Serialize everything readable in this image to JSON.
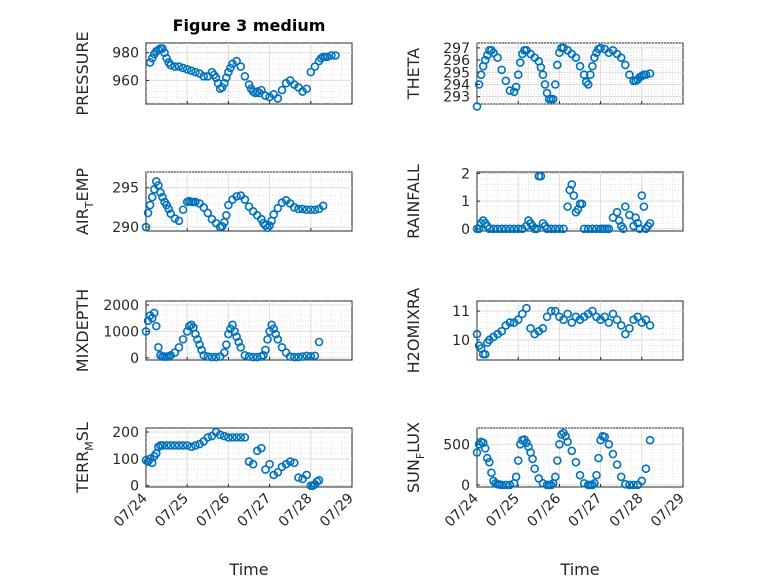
{
  "chart_data": [
    {
      "type": "scatter",
      "title": "Figure 3 medium",
      "ylabel": "PRESSURE",
      "ylabel_sub": "",
      "ylabel_tail": "",
      "xlim": [
        0,
        5
      ],
      "ylim": [
        943,
        987
      ],
      "yticks": [
        960,
        980
      ],
      "xticklabels": [],
      "xlabel": "",
      "grid": true,
      "x": [
        0.1,
        0.15,
        0.2,
        0.25,
        0.3,
        0.35,
        0.4,
        0.45,
        0.5,
        0.55,
        0.6,
        0.7,
        0.8,
        0.9,
        1.0,
        1.1,
        1.2,
        1.3,
        1.4,
        1.5,
        1.6,
        1.65,
        1.7,
        1.75,
        1.8,
        1.85,
        1.9,
        1.95,
        2.0,
        2.05,
        2.1,
        2.2,
        2.3,
        2.4,
        2.5,
        2.55,
        2.6,
        2.65,
        2.7,
        2.75,
        2.8,
        2.9,
        3.0,
        3.1,
        3.2,
        3.3,
        3.4,
        3.5,
        3.6,
        3.7,
        3.8,
        3.9,
        4.0,
        4.1,
        4.2,
        4.25,
        4.3,
        4.35,
        4.4,
        4.5,
        4.6
      ],
      "y": [
        973,
        976,
        979,
        981,
        982,
        983,
        983,
        980,
        976,
        973,
        971,
        970,
        970,
        969,
        968,
        967,
        966,
        965,
        963,
        963,
        966,
        964,
        962,
        958,
        954,
        955,
        958,
        962,
        966,
        969,
        972,
        974,
        970,
        963,
        957,
        954,
        952,
        951,
        952,
        951,
        953,
        949,
        948,
        950,
        947,
        953,
        958,
        960,
        957,
        955,
        952,
        954,
        966,
        970,
        974,
        976,
        977,
        977,
        977,
        978,
        978
      ]
    },
    {
      "type": "scatter",
      "title": "",
      "ylabel": "THETA",
      "ylabel_sub": "",
      "ylabel_tail": "",
      "xlim": [
        0,
        5
      ],
      "ylim": [
        292.4,
        297.4
      ],
      "yticks": [
        293,
        294,
        295,
        296,
        297
      ],
      "xticklabels": [],
      "xlabel": "",
      "grid": true,
      "x": [
        0.0,
        0.05,
        0.1,
        0.15,
        0.2,
        0.25,
        0.3,
        0.35,
        0.4,
        0.5,
        0.6,
        0.7,
        0.8,
        0.9,
        0.95,
        1.0,
        1.05,
        1.1,
        1.15,
        1.2,
        1.3,
        1.4,
        1.5,
        1.55,
        1.6,
        1.65,
        1.7,
        1.75,
        1.8,
        1.85,
        1.9,
        1.95,
        2.0,
        2.05,
        2.1,
        2.2,
        2.3,
        2.4,
        2.5,
        2.6,
        2.65,
        2.7,
        2.75,
        2.8,
        2.85,
        2.9,
        2.95,
        3.0,
        3.1,
        3.2,
        3.3,
        3.4,
        3.5,
        3.6,
        3.7,
        3.8,
        3.85,
        3.9,
        3.95,
        4.0,
        4.05,
        4.1,
        4.2
      ],
      "y": [
        292.2,
        294.0,
        294.8,
        295.5,
        296.0,
        296.4,
        296.8,
        296.8,
        296.6,
        296.2,
        295.2,
        294.3,
        293.5,
        293.4,
        293.8,
        294.8,
        295.8,
        296.5,
        296.8,
        296.8,
        296.5,
        296.2,
        295.9,
        295.4,
        294.8,
        294.0,
        293.3,
        292.8,
        292.8,
        292.8,
        294.0,
        295.6,
        296.6,
        297.0,
        297.0,
        296.8,
        296.5,
        296.2,
        295.5,
        294.8,
        294.2,
        294.0,
        294.8,
        295.5,
        296.2,
        296.6,
        296.9,
        297.0,
        296.9,
        296.6,
        296.8,
        296.5,
        296.2,
        295.6,
        294.8,
        294.3,
        294.3,
        294.4,
        294.6,
        294.7,
        294.8,
        294.8,
        294.9
      ]
    },
    {
      "type": "scatter",
      "title": "",
      "ylabel": "AIR",
      "ylabel_sub": "T",
      "ylabel_tail": "EMP",
      "xlim": [
        0,
        5
      ],
      "ylim": [
        289.5,
        297
      ],
      "yticks": [
        290,
        295
      ],
      "xticklabels": [],
      "xlabel": "",
      "grid": true,
      "x": [
        0.0,
        0.05,
        0.1,
        0.15,
        0.2,
        0.25,
        0.3,
        0.35,
        0.4,
        0.45,
        0.5,
        0.55,
        0.6,
        0.7,
        0.8,
        0.9,
        1.0,
        1.05,
        1.1,
        1.15,
        1.2,
        1.3,
        1.4,
        1.5,
        1.6,
        1.7,
        1.8,
        1.85,
        1.9,
        1.95,
        2.0,
        2.1,
        2.2,
        2.3,
        2.4,
        2.5,
        2.6,
        2.7,
        2.8,
        2.85,
        2.9,
        2.95,
        3.0,
        3.05,
        3.1,
        3.2,
        3.3,
        3.4,
        3.5,
        3.6,
        3.7,
        3.8,
        3.9,
        4.0,
        4.1,
        4.2,
        4.3
      ],
      "y": [
        290.0,
        291.8,
        292.8,
        293.8,
        294.8,
        295.8,
        295.3,
        294.4,
        293.8,
        293.2,
        292.8,
        292.3,
        291.7,
        291.1,
        290.8,
        292.2,
        293.2,
        293.3,
        293.2,
        293.2,
        293.2,
        293.0,
        292.5,
        291.8,
        291.0,
        290.5,
        290.0,
        290.1,
        290.6,
        291.5,
        292.8,
        293.5,
        293.9,
        294.0,
        293.5,
        292.6,
        292.0,
        291.5,
        291.0,
        290.5,
        290.2,
        289.9,
        290.2,
        290.8,
        291.6,
        292.4,
        293.1,
        293.4,
        293.0,
        292.5,
        292.3,
        292.3,
        292.2,
        292.2,
        292.2,
        292.3,
        292.7
      ]
    },
    {
      "type": "scatter",
      "title": "",
      "ylabel": "RAINFALL",
      "ylabel_sub": "",
      "ylabel_tail": "",
      "xlim": [
        0,
        5
      ],
      "ylim": [
        -0.08,
        2.05
      ],
      "yticks": [
        0,
        1,
        2
      ],
      "xticklabels": [],
      "xlabel": "",
      "grid": true,
      "x": [
        0.0,
        0.05,
        0.1,
        0.15,
        0.2,
        0.25,
        0.3,
        0.4,
        0.5,
        0.6,
        0.7,
        0.8,
        0.9,
        1.0,
        1.1,
        1.2,
        1.25,
        1.3,
        1.35,
        1.4,
        1.45,
        1.5,
        1.55,
        1.6,
        1.65,
        1.7,
        1.8,
        1.9,
        2.0,
        2.1,
        2.2,
        2.25,
        2.3,
        2.35,
        2.4,
        2.45,
        2.5,
        2.55,
        2.6,
        2.7,
        2.8,
        2.9,
        3.0,
        3.05,
        3.1,
        3.15,
        3.2,
        3.3,
        3.4,
        3.45,
        3.5,
        3.55,
        3.6,
        3.7,
        3.8,
        3.85,
        3.9,
        3.95,
        4.0,
        4.05,
        4.1,
        4.15,
        4.2
      ],
      "y": [
        0.0,
        0.0,
        0.2,
        0.3,
        0.2,
        0.1,
        0.0,
        0.0,
        0.0,
        0.0,
        0.0,
        0.0,
        0.0,
        0.0,
        0.0,
        0.1,
        0.3,
        0.2,
        0.1,
        0.0,
        0.0,
        1.9,
        1.9,
        0.2,
        0.1,
        0.0,
        0.0,
        0.0,
        0.0,
        0.0,
        0.8,
        1.4,
        1.6,
        1.2,
        0.6,
        0.7,
        0.9,
        0.9,
        0.0,
        0.0,
        0.0,
        0.0,
        0.0,
        0.0,
        0.0,
        0.0,
        0.0,
        0.4,
        0.6,
        0.3,
        0.1,
        0.0,
        0.8,
        0.5,
        0.1,
        0.4,
        0.2,
        0.0,
        1.2,
        0.8,
        0.0,
        0.1,
        0.2
      ]
    },
    {
      "type": "scatter",
      "title": "",
      "ylabel": "MIXDEPTH",
      "ylabel_sub": "",
      "ylabel_tail": "",
      "xlim": [
        0,
        5
      ],
      "ylim": [
        -80,
        2150
      ],
      "yticks": [
        0,
        1000,
        2000
      ],
      "xticklabels": [],
      "xlabel": "",
      "grid": true,
      "x": [
        0.0,
        0.05,
        0.1,
        0.15,
        0.2,
        0.25,
        0.3,
        0.35,
        0.4,
        0.45,
        0.5,
        0.55,
        0.6,
        0.7,
        0.8,
        0.9,
        1.0,
        1.05,
        1.1,
        1.15,
        1.2,
        1.25,
        1.3,
        1.35,
        1.4,
        1.5,
        1.6,
        1.7,
        1.8,
        1.9,
        1.95,
        2.0,
        2.05,
        2.1,
        2.15,
        2.2,
        2.25,
        2.3,
        2.4,
        2.5,
        2.6,
        2.7,
        2.8,
        2.85,
        2.9,
        2.95,
        3.0,
        3.05,
        3.1,
        3.15,
        3.2,
        3.3,
        3.4,
        3.5,
        3.6,
        3.7,
        3.8,
        3.9,
        4.0,
        4.1,
        4.2
      ],
      "y": [
        1000,
        1400,
        1600,
        1500,
        1700,
        1200,
        400,
        100,
        50,
        50,
        50,
        50,
        100,
        200,
        400,
        700,
        1000,
        1200,
        1250,
        1150,
        900,
        700,
        500,
        300,
        100,
        50,
        30,
        30,
        50,
        200,
        500,
        900,
        1100,
        1250,
        1000,
        800,
        600,
        400,
        100,
        50,
        30,
        30,
        50,
        100,
        300,
        700,
        1000,
        1250,
        1100,
        900,
        700,
        400,
        200,
        50,
        30,
        30,
        50,
        80,
        60,
        80,
        600
      ]
    },
    {
      "type": "scatter",
      "title": "",
      "ylabel": "H2OMIXRA",
      "ylabel_sub": "",
      "ylabel_tail": "",
      "xlim": [
        0,
        5
      ],
      "ylim": [
        9.3,
        11.35
      ],
      "yticks": [
        10,
        11
      ],
      "xticklabels": [],
      "xlabel": "",
      "grid": true,
      "x": [
        0.0,
        0.05,
        0.1,
        0.15,
        0.2,
        0.25,
        0.3,
        0.4,
        0.5,
        0.6,
        0.7,
        0.8,
        0.9,
        1.0,
        1.1,
        1.2,
        1.3,
        1.4,
        1.5,
        1.6,
        1.7,
        1.8,
        1.9,
        2.0,
        2.1,
        2.2,
        2.3,
        2.4,
        2.5,
        2.6,
        2.7,
        2.8,
        2.9,
        3.0,
        3.1,
        3.2,
        3.3,
        3.4,
        3.5,
        3.6,
        3.7,
        3.8,
        3.9,
        4.0,
        4.1,
        4.2
      ],
      "y": [
        10.2,
        9.8,
        9.7,
        9.5,
        9.5,
        9.9,
        10.0,
        10.1,
        10.2,
        10.3,
        10.5,
        10.6,
        10.6,
        10.7,
        10.9,
        11.1,
        10.4,
        10.2,
        10.3,
        10.4,
        10.8,
        11.0,
        11.0,
        10.8,
        10.7,
        10.9,
        10.6,
        10.8,
        10.7,
        10.8,
        10.9,
        11.0,
        10.8,
        10.7,
        10.8,
        10.6,
        10.9,
        10.7,
        10.5,
        10.2,
        10.4,
        10.7,
        10.8,
        10.6,
        10.7,
        10.5
      ]
    },
    {
      "type": "scatter",
      "title": "",
      "ylabel": "TERR",
      "ylabel_sub": "M",
      "ylabel_tail": "SL",
      "xlim": [
        0,
        5
      ],
      "ylim": [
        -5,
        215
      ],
      "yticks": [
        0,
        100,
        200
      ],
      "xticklabels": [
        "07/24",
        "07/25",
        "07/26",
        "07/27",
        "07/28",
        "07/29"
      ],
      "xlabel": "Time",
      "grid": true,
      "x": [
        0.0,
        0.05,
        0.1,
        0.15,
        0.2,
        0.25,
        0.3,
        0.35,
        0.4,
        0.5,
        0.6,
        0.7,
        0.8,
        0.9,
        1.0,
        1.1,
        1.2,
        1.3,
        1.4,
        1.5,
        1.6,
        1.7,
        1.8,
        1.9,
        2.0,
        2.1,
        2.2,
        2.3,
        2.4,
        2.5,
        2.6,
        2.7,
        2.8,
        2.9,
        3.0,
        3.1,
        3.2,
        3.3,
        3.4,
        3.5,
        3.6,
        3.7,
        3.8,
        3.9,
        4.0,
        4.05,
        4.1,
        4.15,
        4.2
      ],
      "y": [
        95,
        90,
        100,
        85,
        110,
        120,
        145,
        150,
        150,
        150,
        150,
        150,
        150,
        150,
        150,
        145,
        150,
        155,
        165,
        180,
        185,
        200,
        190,
        185,
        180,
        180,
        180,
        180,
        180,
        90,
        80,
        130,
        140,
        60,
        80,
        40,
        50,
        70,
        80,
        90,
        85,
        30,
        25,
        40,
        0,
        0,
        5,
        15,
        20
      ]
    },
    {
      "type": "scatter",
      "title": "",
      "ylabel": "SUN",
      "ylabel_sub": "F",
      "ylabel_tail": "LUX",
      "xlim": [
        0,
        5
      ],
      "ylim": [
        -25,
        700
      ],
      "yticks": [
        0,
        500
      ],
      "xticklabels": [
        "07/24",
        "07/25",
        "07/26",
        "07/27",
        "07/28",
        "07/29"
      ],
      "xlabel": "Time",
      "grid": true,
      "x": [
        0.0,
        0.05,
        0.1,
        0.15,
        0.2,
        0.25,
        0.3,
        0.35,
        0.4,
        0.45,
        0.5,
        0.55,
        0.6,
        0.7,
        0.8,
        0.9,
        0.95,
        1.0,
        1.05,
        1.1,
        1.15,
        1.2,
        1.25,
        1.3,
        1.35,
        1.4,
        1.5,
        1.6,
        1.7,
        1.75,
        1.8,
        1.85,
        1.9,
        1.95,
        2.0,
        2.05,
        2.1,
        2.15,
        2.2,
        2.3,
        2.4,
        2.5,
        2.6,
        2.7,
        2.75,
        2.8,
        2.85,
        2.9,
        2.95,
        3.0,
        3.05,
        3.1,
        3.2,
        3.3,
        3.4,
        3.5,
        3.6,
        3.7,
        3.8,
        3.9,
        4.0,
        4.1,
        4.2
      ],
      "y": [
        400,
        500,
        530,
        520,
        450,
        330,
        280,
        150,
        50,
        20,
        10,
        5,
        0,
        0,
        0,
        20,
        100,
        300,
        500,
        550,
        560,
        520,
        470,
        400,
        320,
        200,
        80,
        20,
        0,
        0,
        0,
        20,
        100,
        300,
        500,
        620,
        640,
        600,
        530,
        420,
        280,
        120,
        20,
        0,
        0,
        0,
        20,
        120,
        330,
        550,
        600,
        590,
        500,
        380,
        250,
        100,
        10,
        0,
        0,
        0,
        50,
        200,
        550
      ]
    }
  ]
}
